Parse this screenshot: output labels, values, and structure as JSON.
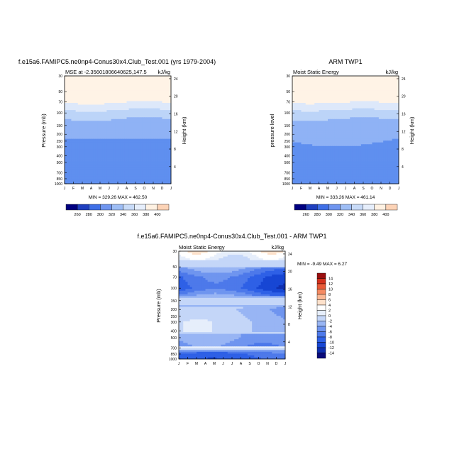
{
  "panels": [
    {
      "id": "model",
      "title": "f.e15a6.FAMIPC5.ne0np4-Conus30x4.Club_Test.001 (yrs 1979-2004)",
      "left_label": "MSE at -2.35601806640625,147.5",
      "right_label": "kJ/kg",
      "ylabel_left": "Pressure (mb)",
      "ylabel_right": "Height (km)",
      "minmax": "MIN = 329.26   MAX = 462.50"
    },
    {
      "id": "obs",
      "title": "ARM TWP1",
      "left_label": "Moist Static Energy",
      "right_label": "kJ/kg",
      "ylabel_left": "pressure level",
      "ylabel_right": "Height (km)",
      "minmax": "MIN = 333.26   MAX = 461.14"
    },
    {
      "id": "diff",
      "title": "f.e15a6.FAMIPC5.ne0np4-Conus30x4.Club_Test.001 - ARM TWP1",
      "left_label": "Moist Static Energy",
      "right_label": "kJ/kg",
      "ylabel_left": "Pressure (mb)",
      "ylabel_right": "Height (km)",
      "minmax": "MIN =  -9.49  MAX =   6.27"
    }
  ],
  "chart_data": [
    {
      "type": "heatmap",
      "subtype": "filled-contour",
      "title": "f.e15a6.FAMIPC5.ne0np4-Conus30x4.Club_Test.001 (yrs 1979-2004)",
      "x_ticks": [
        "J",
        "F",
        "M",
        "A",
        "M",
        "J",
        "J",
        "A",
        "S",
        "O",
        "N",
        "D",
        "J"
      ],
      "y_ticks_pressure": [
        30,
        50,
        70,
        100,
        150,
        200,
        250,
        300,
        400,
        500,
        700,
        850,
        1000
      ],
      "y_ticks_height": [
        24,
        20,
        16,
        12,
        8,
        4
      ],
      "pressure_levels": [
        30,
        50,
        70,
        100,
        150,
        200,
        300,
        500,
        700,
        850,
        1000
      ],
      "values_by_level": [
        460,
        452,
        402,
        372,
        348,
        343,
        336,
        334,
        332,
        331,
        333
      ],
      "colorbar_levels": [
        260,
        280,
        300,
        320,
        340,
        360,
        380,
        400
      ],
      "min": 329.26,
      "max": 462.5,
      "units": "kJ/kg"
    },
    {
      "type": "heatmap",
      "subtype": "filled-contour",
      "title": "ARM TWP1",
      "x_ticks": [
        "J",
        "F",
        "M",
        "A",
        "M",
        "J",
        "J",
        "A",
        "S",
        "O",
        "N",
        "D",
        "J"
      ],
      "y_ticks_pressure": [
        30,
        50,
        70,
        100,
        150,
        200,
        250,
        300,
        400,
        500,
        700,
        850,
        1000
      ],
      "y_ticks_height": [
        24,
        20,
        16,
        12,
        8,
        4
      ],
      "pressure_levels": [
        30,
        50,
        70,
        100,
        150,
        200,
        300,
        500,
        700,
        850,
        1000
      ],
      "values_by_level": [
        460,
        452,
        402,
        372,
        348,
        343,
        338,
        336,
        335,
        336,
        339
      ],
      "colorbar_levels": [
        260,
        280,
        300,
        320,
        340,
        360,
        380,
        400
      ],
      "min": 333.26,
      "max": 461.14,
      "units": "kJ/kg"
    },
    {
      "type": "heatmap",
      "subtype": "filled-contour",
      "title": "f.e15a6.FAMIPC5.ne0np4-Conus30x4.Club_Test.001 - ARM TWP1",
      "x_ticks": [
        "J",
        "F",
        "M",
        "A",
        "M",
        "J",
        "J",
        "A",
        "S",
        "O",
        "N",
        "D",
        "J"
      ],
      "y_ticks_pressure": [
        30,
        50,
        70,
        100,
        150,
        200,
        250,
        300,
        400,
        500,
        700,
        850,
        1000
      ],
      "y_ticks_height": [
        24,
        20,
        16,
        12,
        8,
        4
      ],
      "pressure_levels": [
        30,
        50,
        70,
        100,
        150,
        200,
        300,
        500,
        700,
        850,
        1000
      ],
      "values_by_level": [
        3,
        -2,
        -6,
        -7,
        -1,
        -3,
        -2,
        -2,
        -4,
        -8,
        -9
      ],
      "colorbar_levels": [
        -14,
        -12,
        -10,
        -8,
        -6,
        -4,
        -2,
        0,
        2,
        4,
        6,
        8,
        10,
        12,
        14
      ],
      "min": -9.49,
      "max": 6.27,
      "units": "kJ/kg"
    }
  ],
  "colors": {
    "abs_palette": [
      "#000080",
      "#0033b3",
      "#1f4fd6",
      "#3f6fe6",
      "#5f8fef",
      "#8fb2f5",
      "#bcd4f8",
      "#dde8fa",
      "#fff3e6",
      "#fde0c8",
      "#fbc4a2",
      "#f69e76",
      "#ea6e4a",
      "#d33b25",
      "#b01410",
      "#7f0000"
    ],
    "diff_palette": [
      "#0a0a7a",
      "#0f2fb0",
      "#1746d4",
      "#2e60e6",
      "#4d79ea",
      "#6f95ef",
      "#98b5f4",
      "#c4d6f8",
      "#e6eefb",
      "#ffffff",
      "#fde1cb",
      "#fbb895",
      "#f58a62",
      "#e95a38",
      "#d32f1c",
      "#9a0e0e"
    ]
  }
}
